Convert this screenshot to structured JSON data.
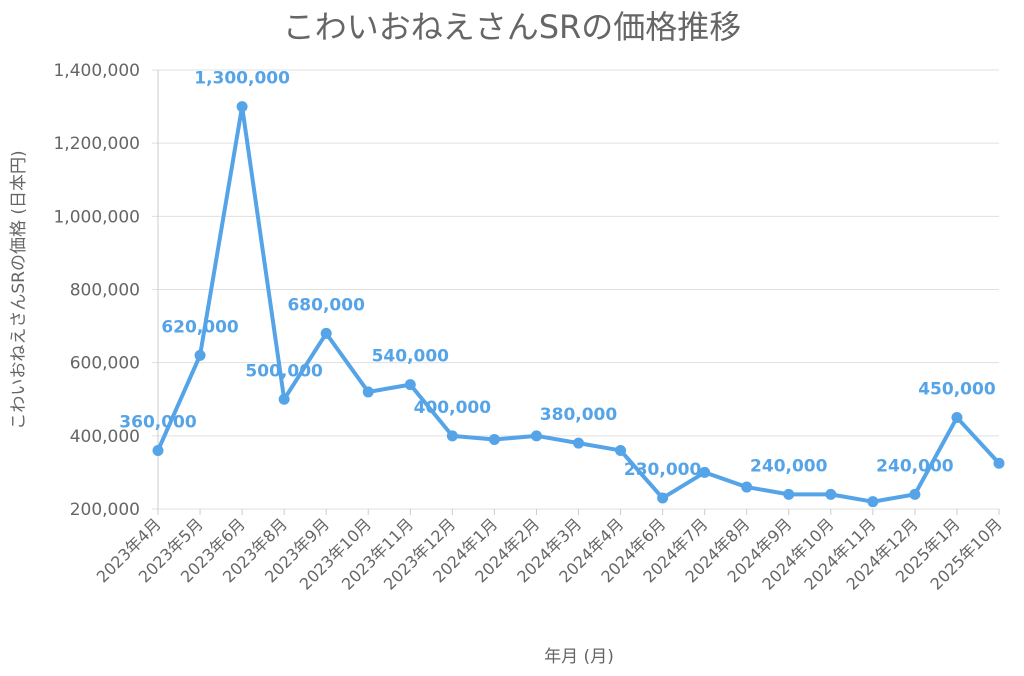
{
  "chart_data": {
    "type": "line",
    "title": "こわいおねえさんSRの価格推移",
    "xlabel": "年月 (月)",
    "ylabel": "こわいおねえさんSRの価格 (日本円)",
    "ylim": [
      200000,
      1400000
    ],
    "yticks": [
      "200,000",
      "400,000",
      "600,000",
      "800,000",
      "1,000,000",
      "1,200,000",
      "1,400,000"
    ],
    "grid": true,
    "color": "#55a4e8",
    "categories": [
      "2023年4月",
      "2023年5月",
      "2023年6月",
      "2023年8月",
      "2023年9月",
      "2023年10月",
      "2023年11月",
      "2023年12月",
      "2024年1月",
      "2024年2月",
      "2024年3月",
      "2024年4月",
      "2024年6月",
      "2024年7月",
      "2024年8月",
      "2024年9月",
      "2024年10月",
      "2024年11月",
      "2024年12月",
      "2025年1月",
      "2025年10月"
    ],
    "values": [
      360000,
      620000,
      1300000,
      500000,
      680000,
      520000,
      540000,
      400000,
      390000,
      400000,
      380000,
      360000,
      230000,
      300000,
      260000,
      240000,
      240000,
      220000,
      240000,
      450000,
      325000
    ],
    "data_labels": [
      {
        "index": 0,
        "text": "360,000"
      },
      {
        "index": 1,
        "text": "620,000"
      },
      {
        "index": 2,
        "text": "1,300,000"
      },
      {
        "index": 3,
        "text": "500,000"
      },
      {
        "index": 4,
        "text": "680,000"
      },
      {
        "index": 6,
        "text": "540,000"
      },
      {
        "index": 7,
        "text": "400,000"
      },
      {
        "index": 10,
        "text": "380,000"
      },
      {
        "index": 12,
        "text": "230,000"
      },
      {
        "index": 15,
        "text": "240,000"
      },
      {
        "index": 18,
        "text": "240,000"
      },
      {
        "index": 19,
        "text": "450,000"
      }
    ]
  }
}
